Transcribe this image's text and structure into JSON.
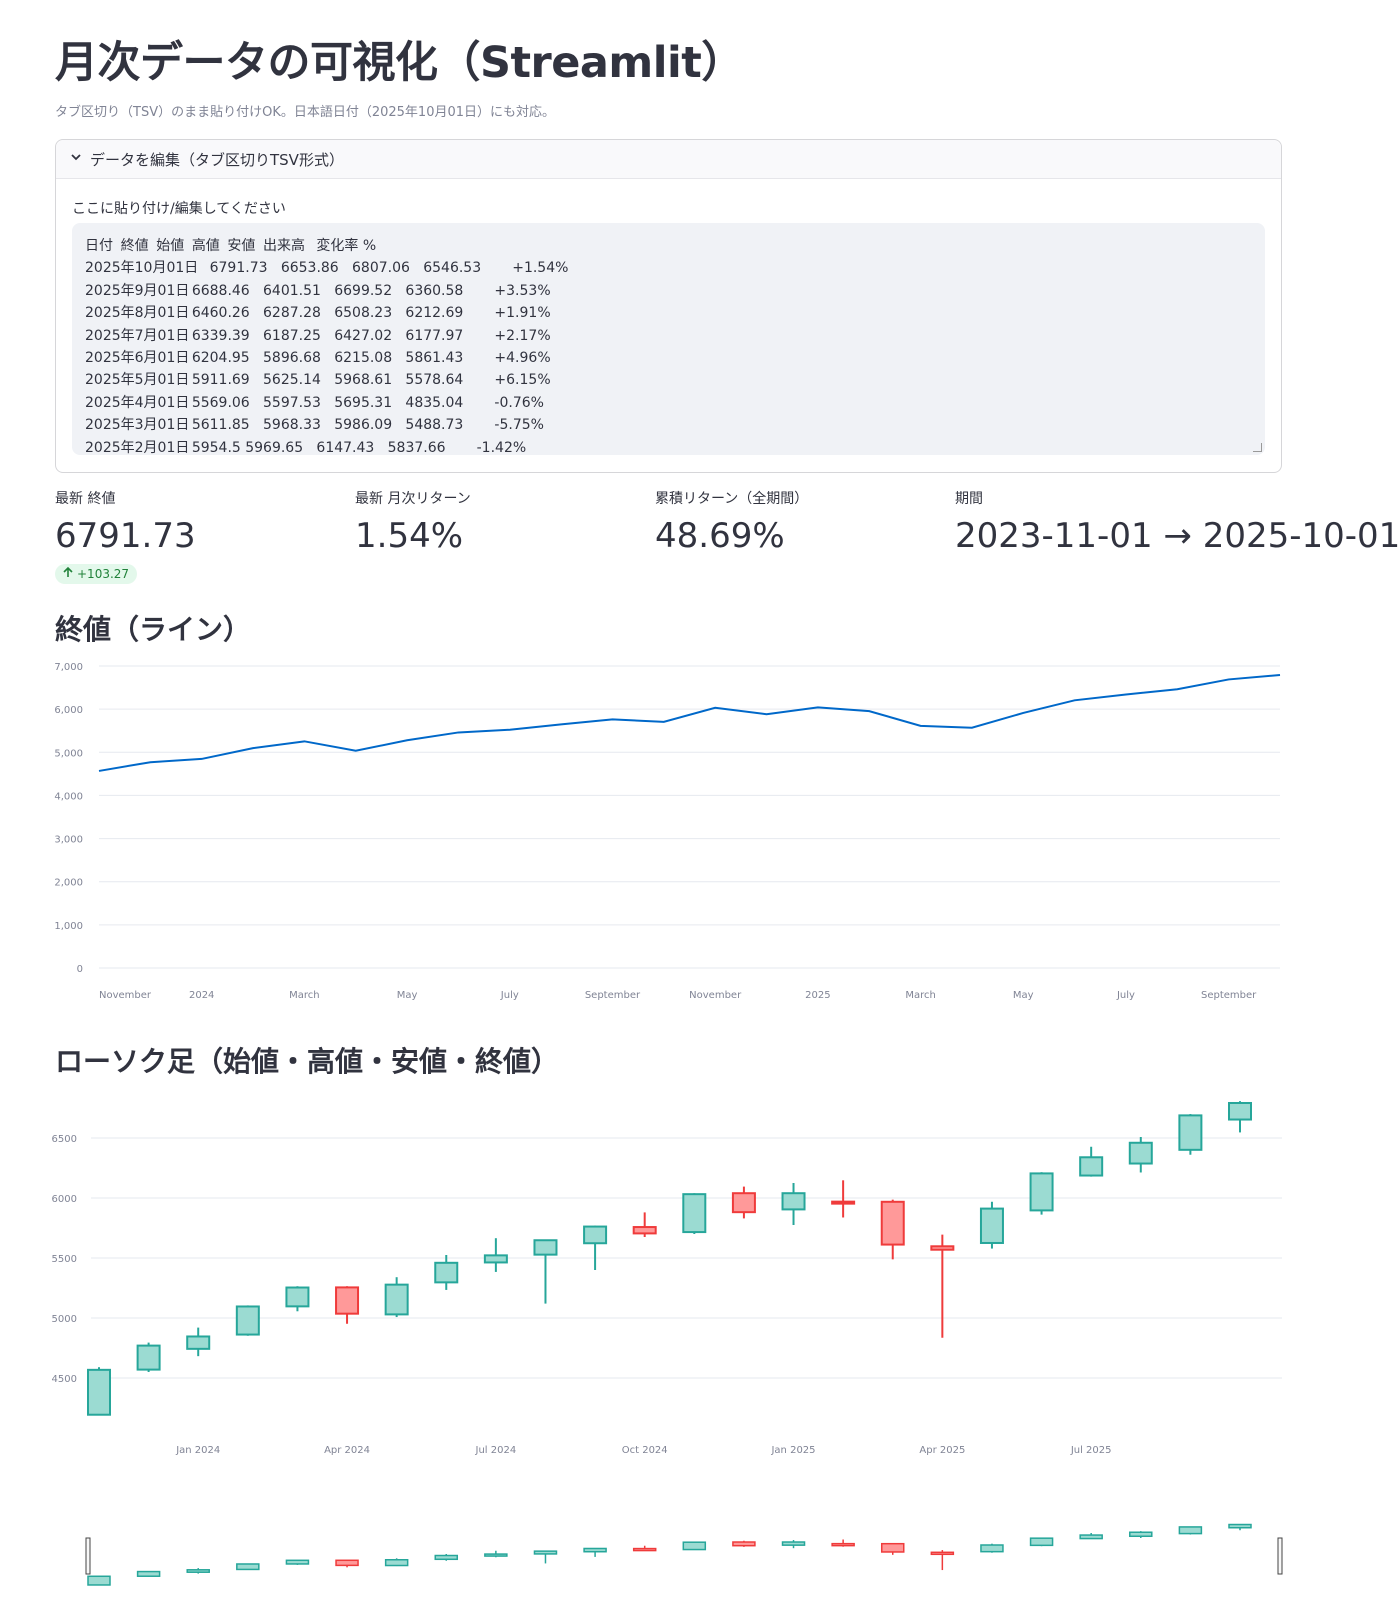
{
  "title": "月次データの可視化（Streamlit）",
  "caption": "タブ区切り（TSV）のまま貼り付けOK。日本語日付（2025年10月01日）にも対応。",
  "expander": {
    "label": "データを編集（タブ区切りTSV形式）",
    "textarea_label": "ここに貼り付け/編集してください",
    "textarea_value": "日付\t終値\t始値\t高値\t安値\t出来高\t変化率 %\n2025年10月01日\t6791.73\t6653.86\t6807.06\t6546.53\t\t+1.54%\n2025年9月01日\t6688.46\t6401.51\t6699.52\t6360.58\t\t+3.53%\n2025年8月01日\t6460.26\t6287.28\t6508.23\t6212.69\t\t+1.91%\n2025年7月01日\t6339.39\t6187.25\t6427.02\t6177.97\t\t+2.17%\n2025年6月01日\t6204.95\t5896.68\t6215.08\t5861.43\t\t+4.96%\n2025年5月01日\t5911.69\t5625.14\t5968.61\t5578.64\t\t+6.15%\n2025年4月01日\t5569.06\t5597.53\t5695.31\t4835.04\t\t-0.76%\n2025年3月01日\t5611.85\t5968.33\t5986.09\t5488.73\t\t-5.75%\n2025年2月01日\t5954.5\t5969.65\t6147.43\t5837.66\t\t-1.42%"
  },
  "metrics": [
    {
      "label": "最新 終値",
      "value": "6791.73",
      "delta": "+103.27"
    },
    {
      "label": "最新 月次リターン",
      "value": "1.54%"
    },
    {
      "label": "累積リターン（全期間）",
      "value": "48.69%"
    },
    {
      "label": "期間",
      "value": "2023-11-01 → 2025-10-01"
    }
  ],
  "line_section_title": "終値（ライン）",
  "candle_section_title": "ローソク足（始値・高値・安値・終値）",
  "colors": {
    "line": "#0068c9",
    "up": "#26a69a",
    "up_fill": "#9bdbd2",
    "down": "#ef3b3b",
    "down_fill": "#ff9999"
  },
  "chart_data": [
    {
      "type": "line",
      "title": "終値（ライン）",
      "x": [
        "2023-11",
        "2023-12",
        "2024-01",
        "2024-02",
        "2024-03",
        "2024-04",
        "2024-05",
        "2024-06",
        "2024-07",
        "2024-08",
        "2024-09",
        "2024-10",
        "2024-11",
        "2024-12",
        "2025-01",
        "2025-02",
        "2025-03",
        "2025-04",
        "2025-05",
        "2025-06",
        "2025-07",
        "2025-08",
        "2025-09",
        "2025-10"
      ],
      "values": [
        4568,
        4770,
        4846,
        5096,
        5254,
        5036,
        5278,
        5460,
        5522,
        5648,
        5762,
        5705,
        6032,
        5882,
        6040,
        5954.5,
        5611.85,
        5569.06,
        5911.69,
        6204.95,
        6339.39,
        6460.26,
        6688.46,
        6791.73
      ],
      "ylim": [
        0,
        7000
      ],
      "yticks": [
        "0",
        "1,000",
        "2,000",
        "3,000",
        "4,000",
        "5,000",
        "6,000",
        "7,000"
      ],
      "xticks": [
        {
          "label": "November",
          "at": "2023-11"
        },
        {
          "label": "2024",
          "at": "2024-01"
        },
        {
          "label": "March",
          "at": "2024-03"
        },
        {
          "label": "May",
          "at": "2024-05"
        },
        {
          "label": "July",
          "at": "2024-07"
        },
        {
          "label": "September",
          "at": "2024-09"
        },
        {
          "label": "November",
          "at": "2024-11"
        },
        {
          "label": "2025",
          "at": "2025-01"
        },
        {
          "label": "March",
          "at": "2025-03"
        },
        {
          "label": "May",
          "at": "2025-05"
        },
        {
          "label": "July",
          "at": "2025-07"
        },
        {
          "label": "September",
          "at": "2025-09"
        }
      ]
    },
    {
      "type": "candlestick",
      "title": "ローソク足（始値・高値・安値・終値）",
      "x": [
        "2023-11",
        "2023-12",
        "2024-01",
        "2024-02",
        "2024-03",
        "2024-04",
        "2024-05",
        "2024-06",
        "2024-07",
        "2024-08",
        "2024-09",
        "2024-10",
        "2024-11",
        "2024-12",
        "2025-01",
        "2025-02",
        "2025-03",
        "2025-04",
        "2025-05",
        "2025-06",
        "2025-07",
        "2025-08",
        "2025-09",
        "2025-10"
      ],
      "open": [
        4194,
        4570,
        4743,
        4862,
        5097,
        5255,
        5030,
        5297,
        5463,
        5528,
        5623,
        5758,
        5716,
        6040,
        5905,
        5969.65,
        5968.33,
        5597.53,
        5625.14,
        5896.68,
        6187.25,
        6287.28,
        6401.51,
        6653.86
      ],
      "high": [
        4590,
        4795,
        4920,
        5105,
        5265,
        5265,
        5340,
        5525,
        5665,
        5650,
        5770,
        5880,
        6040,
        6095,
        6125,
        6147.43,
        5986.09,
        5695.31,
        5968.61,
        6215.08,
        6427.02,
        6508.23,
        6699.52,
        6807.06
      ],
      "low": [
        4190,
        4550,
        4682,
        4852,
        5056,
        4952,
        5008,
        5234,
        5384,
        5120,
        5400,
        5675,
        5700,
        5830,
        5775,
        5837.66,
        5488.73,
        4835.04,
        5578.64,
        5861.43,
        6177.97,
        6212.69,
        6360.58,
        6546.53
      ],
      "close": [
        4568,
        4770,
        4846,
        5096,
        5254,
        5036,
        5278,
        5460,
        5522,
        5648,
        5762,
        5705,
        6032,
        5882,
        6040,
        5954.5,
        5611.85,
        5569.06,
        5911.69,
        6204.95,
        6339.39,
        6460.26,
        6688.46,
        6791.73
      ],
      "ylim": [
        4150,
        6900
      ],
      "yticks": [
        "4500",
        "5000",
        "5500",
        "6000",
        "6500"
      ],
      "xticks": [
        {
          "label": "Jan 2024",
          "at": "2024-01"
        },
        {
          "label": "Apr 2024",
          "at": "2024-04"
        },
        {
          "label": "Jul 2024",
          "at": "2024-07"
        },
        {
          "label": "Oct 2024",
          "at": "2024-10"
        },
        {
          "label": "Jan 2025",
          "at": "2025-01"
        },
        {
          "label": "Apr 2025",
          "at": "2025-04"
        },
        {
          "label": "Jul 2025",
          "at": "2025-07"
        }
      ]
    }
  ]
}
